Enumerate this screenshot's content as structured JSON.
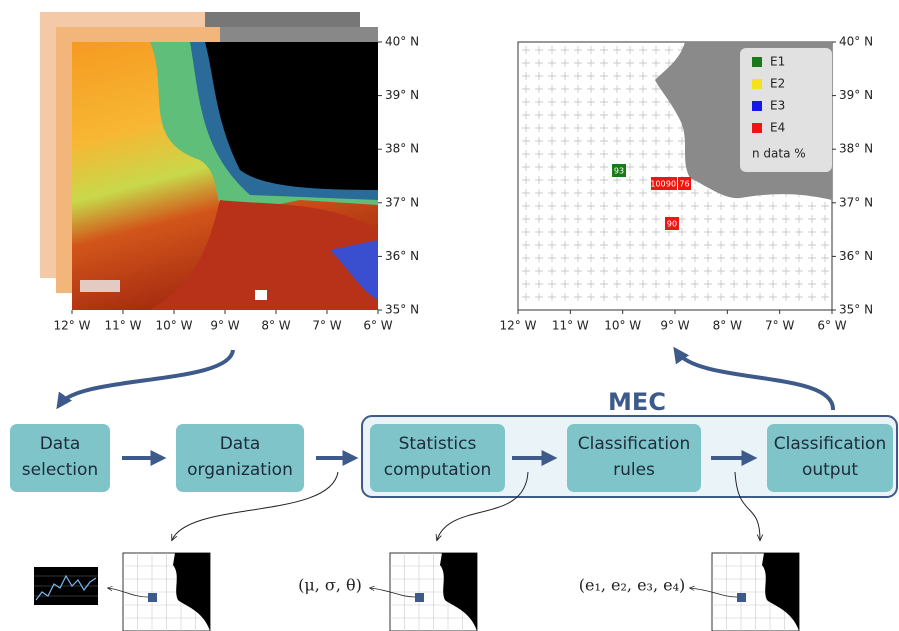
{
  "left_map": {
    "lat_labels": [
      "40° N",
      "39° N",
      "38° N",
      "37° N",
      "36° N",
      "35° N"
    ],
    "lon_labels": [
      "12° W",
      "11° W",
      "10° W",
      "9° W",
      "8° W",
      "7° W",
      "6° W"
    ]
  },
  "right_map": {
    "lat_labels": [
      "40° N",
      "39° N",
      "38° N",
      "37° N",
      "36° N",
      "35° N"
    ],
    "lon_labels": [
      "12° W",
      "11° W",
      "10° W",
      "9° W",
      "8° W",
      "7° W",
      "6° W"
    ],
    "legend": [
      {
        "label": "E1",
        "color": "#1a7a1a"
      },
      {
        "label": "E2",
        "color": "#f5e21c"
      },
      {
        "label": "E3",
        "color": "#1515f0"
      },
      {
        "label": "E4",
        "color": "#f01515"
      }
    ],
    "legend_note": "n data %",
    "cells": [
      {
        "label": "93",
        "color": "#1a7a1a"
      },
      {
        "label": "100",
        "color": "#f01515"
      },
      {
        "label": "90",
        "color": "#f01515"
      },
      {
        "label": "76",
        "color": "#f01515"
      },
      {
        "label": "90",
        "color": "#f01515"
      }
    ]
  },
  "mec_title": "MEC",
  "steps": [
    {
      "lines": [
        "Data",
        "selection"
      ]
    },
    {
      "lines": [
        "Data",
        "organization"
      ]
    },
    {
      "lines": [
        "Statistics",
        "computation"
      ]
    },
    {
      "lines": [
        "Classification",
        "rules"
      ]
    },
    {
      "lines": [
        "Classification",
        "output"
      ]
    }
  ],
  "outputs": [
    "(μ, σ, θ)",
    "(e₁, e₂, e₃, e₄)"
  ]
}
